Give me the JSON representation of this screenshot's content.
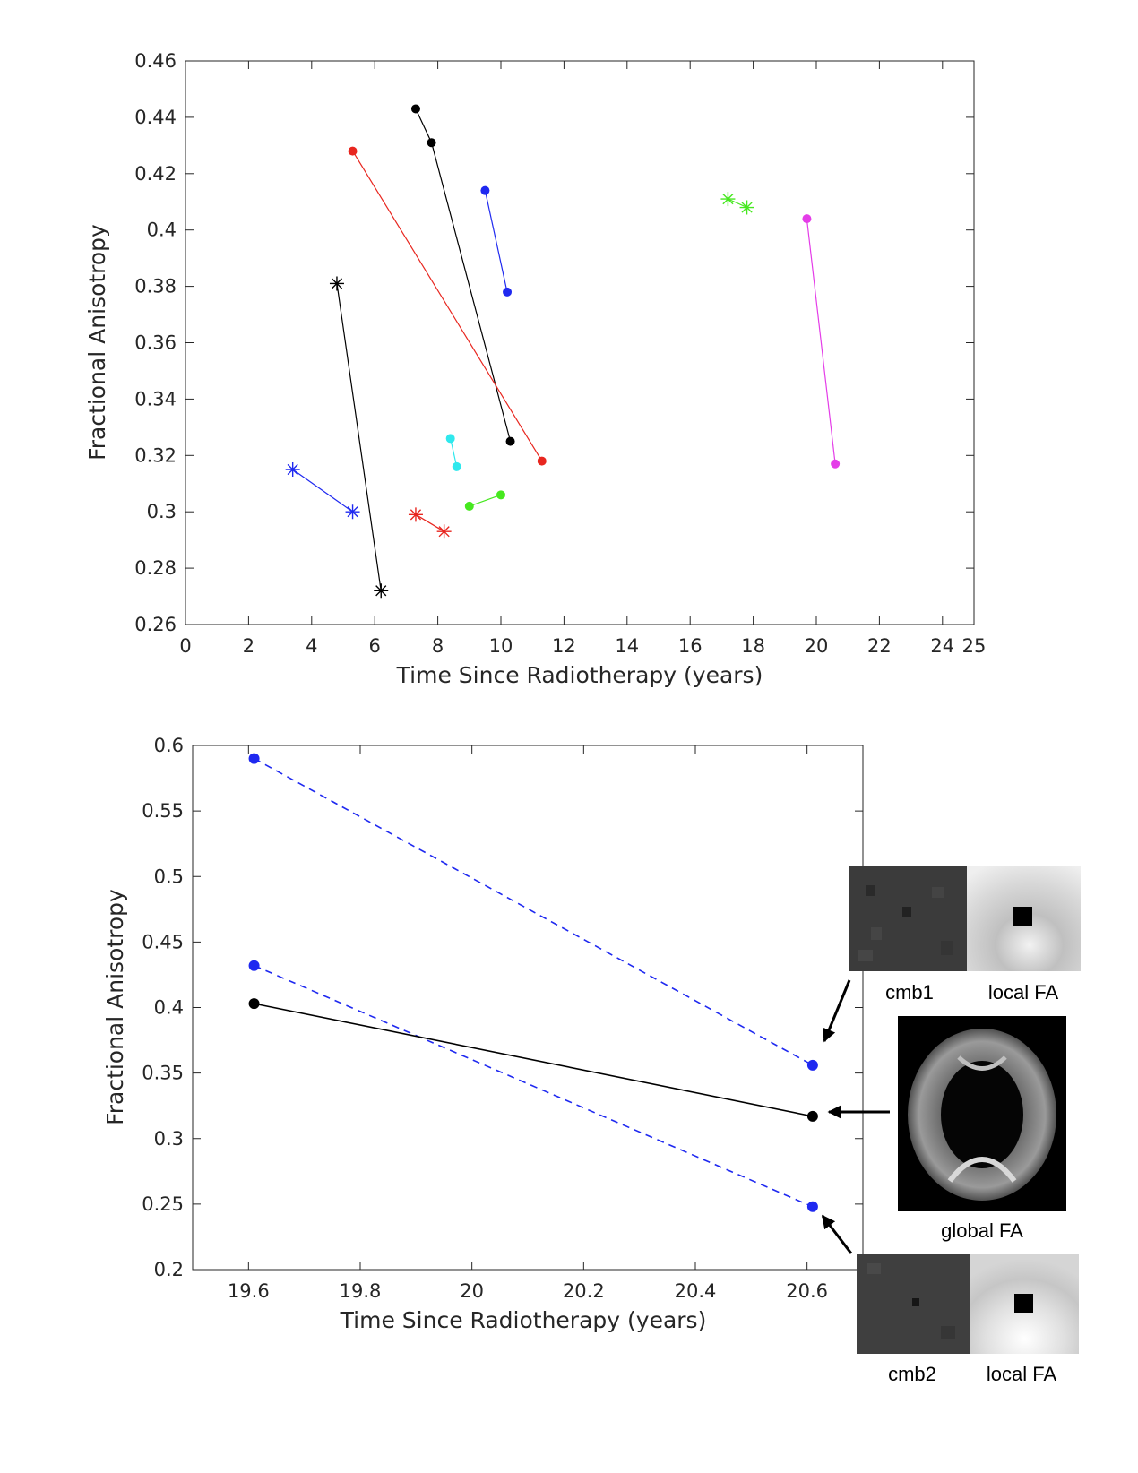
{
  "chart_data": [
    {
      "type": "line",
      "title": "",
      "xlabel": "Time Since Radiotherapy (years)",
      "ylabel": "Fractional Anisotropy",
      "xlim": [
        0,
        25
      ],
      "ylim": [
        0.26,
        0.46
      ],
      "xticks": [
        "0",
        "2",
        "4",
        "6",
        "8",
        "10",
        "12",
        "14",
        "16",
        "18",
        "20",
        "22",
        "24",
        "25"
      ],
      "yticks": [
        "0.26",
        "0.28",
        "0.3",
        "0.32",
        "0.34",
        "0.36",
        "0.38",
        "0.4",
        "0.42",
        "0.44",
        "0.46"
      ],
      "grid": false,
      "series": [
        {
          "color": "#000000",
          "marker": "dot",
          "x": [
            7.3,
            7.8,
            10.3
          ],
          "y": [
            0.443,
            0.431,
            0.325
          ]
        },
        {
          "color": "#e8261f",
          "marker": "dot",
          "x": [
            5.3,
            11.3
          ],
          "y": [
            0.428,
            0.318
          ]
        },
        {
          "color": "#1f29f0",
          "marker": "dot",
          "x": [
            9.5,
            10.2
          ],
          "y": [
            0.414,
            0.378
          ]
        },
        {
          "color": "#e43de8",
          "marker": "dot",
          "x": [
            19.7,
            20.6
          ],
          "y": [
            0.404,
            0.317
          ]
        },
        {
          "color": "#2fe8ed",
          "marker": "dot",
          "x": [
            8.4,
            8.6
          ],
          "y": [
            0.326,
            0.316
          ]
        },
        {
          "color": "#46e81f",
          "marker": "dot",
          "x": [
            9.0,
            10.0
          ],
          "y": [
            0.302,
            0.306
          ]
        },
        {
          "color": "#46e81f",
          "marker": "star",
          "x": [
            17.2,
            17.8
          ],
          "y": [
            0.411,
            0.408
          ]
        },
        {
          "color": "#000000",
          "marker": "star",
          "x": [
            4.8,
            6.2
          ],
          "y": [
            0.381,
            0.272
          ]
        },
        {
          "color": "#1f29f0",
          "marker": "star",
          "x": [
            3.4,
            5.3
          ],
          "y": [
            0.315,
            0.3
          ]
        },
        {
          "color": "#e8261f",
          "marker": "star",
          "x": [
            7.3,
            8.2
          ],
          "y": [
            0.299,
            0.293
          ]
        }
      ]
    },
    {
      "type": "line",
      "title": "",
      "xlabel": "Time Since Radiotherapy (years)",
      "ylabel": "Fractional Anisotropy",
      "xlim": [
        19.5,
        20.7
      ],
      "ylim": [
        0.2,
        0.6
      ],
      "xticks": [
        "19.6",
        "19.8",
        "20",
        "20.2",
        "20.4",
        "20.6"
      ],
      "yticks": [
        "0.2",
        "0.25",
        "0.3",
        "0.35",
        "0.4",
        "0.45",
        "0.5",
        "0.55",
        "0.6"
      ],
      "grid": false,
      "series": [
        {
          "color": "#1f29f0",
          "style": "dashed",
          "marker": "dot",
          "x": [
            19.61,
            20.61
          ],
          "y": [
            0.59,
            0.356
          ]
        },
        {
          "color": "#1f29f0",
          "style": "dashed",
          "marker": "dot",
          "x": [
            19.61,
            20.61
          ],
          "y": [
            0.432,
            0.248
          ]
        },
        {
          "color": "#000000",
          "style": "solid",
          "marker": "dot",
          "x": [
            19.61,
            20.61
          ],
          "y": [
            0.403,
            0.317
          ]
        }
      ],
      "insets": {
        "cmb1": "cmb1",
        "local_fa_top": "local FA",
        "global": "global FA",
        "cmb2": "cmb2",
        "local_fa_bottom": "local FA"
      }
    }
  ]
}
